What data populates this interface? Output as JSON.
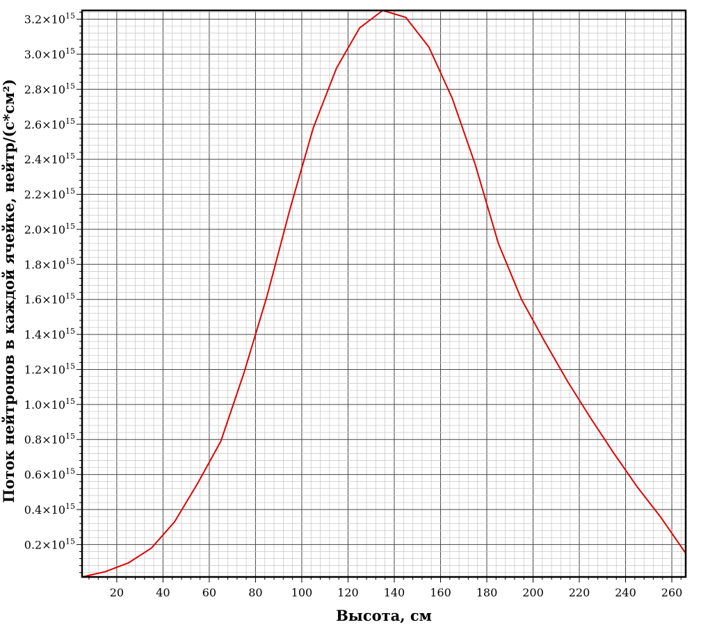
{
  "chart_data": {
    "type": "line",
    "title": "",
    "xlabel": "Высота, см",
    "ylabel": "Поток нейтронов в каждой ячейке,  нейтр/(с*см²)",
    "xlim": [
      5,
      266
    ],
    "ylim": [
      15000000000000.0,
      3250000000000000.0
    ],
    "grid": true,
    "x_ticks": [
      20,
      40,
      60,
      80,
      100,
      120,
      140,
      160,
      180,
      200,
      220,
      240,
      260
    ],
    "y_ticks": [
      {
        "value": 200000000000000.0,
        "mantissa": "0.2"
      },
      {
        "value": 400000000000000.0,
        "mantissa": "0.4"
      },
      {
        "value": 600000000000000.0,
        "mantissa": "0.6"
      },
      {
        "value": 800000000000000.0,
        "mantissa": "0.8"
      },
      {
        "value": 1000000000000000.0,
        "mantissa": "1.0"
      },
      {
        "value": 1200000000000000.0,
        "mantissa": "1.2"
      },
      {
        "value": 1400000000000000.0,
        "mantissa": "1.4"
      },
      {
        "value": 1600000000000000.0,
        "mantissa": "1.6"
      },
      {
        "value": 1800000000000000.0,
        "mantissa": "1.8"
      },
      {
        "value": 2000000000000000.0,
        "mantissa": "2.0"
      },
      {
        "value": 2200000000000000.0,
        "mantissa": "2.2"
      },
      {
        "value": 2400000000000000.0,
        "mantissa": "2.4"
      },
      {
        "value": 2600000000000000.0,
        "mantissa": "2.6"
      },
      {
        "value": 2800000000000000.0,
        "mantissa": "2.8"
      },
      {
        "value": 3000000000000000.0,
        "mantissa": "3.0"
      },
      {
        "value": 3200000000000000.0,
        "mantissa": "3.2"
      }
    ],
    "y_tick_suffix": "×10",
    "y_tick_exponent": "15",
    "series": [
      {
        "color": "#e00000",
        "x": [
          5,
          15,
          25,
          35,
          45,
          55,
          65,
          75,
          85,
          95,
          105,
          115,
          125,
          135,
          145,
          155,
          165,
          175,
          185,
          195,
          205,
          215,
          225,
          235,
          245,
          255,
          266
        ],
        "y": [
          15000000000000.0,
          45000000000000.0,
          95000000000000.0,
          180000000000000.0,
          330000000000000.0,
          550000000000000.0,
          790000000000000.0,
          1180000000000000.0,
          1620000000000000.0,
          2120000000000000.0,
          2580000000000000.0,
          2920000000000000.0,
          3150000000000000.0,
          3250000000000000.0,
          3210000000000000.0,
          3040000000000000.0,
          2750000000000000.0,
          2370000000000000.0,
          1920000000000000.0,
          1600000000000000.0,
          1360000000000000.0,
          1130000000000000.0,
          920000000000000.0,
          720000000000000.0,
          530000000000000.0,
          360000000000000.0,
          150000000000000.0
        ]
      }
    ]
  }
}
